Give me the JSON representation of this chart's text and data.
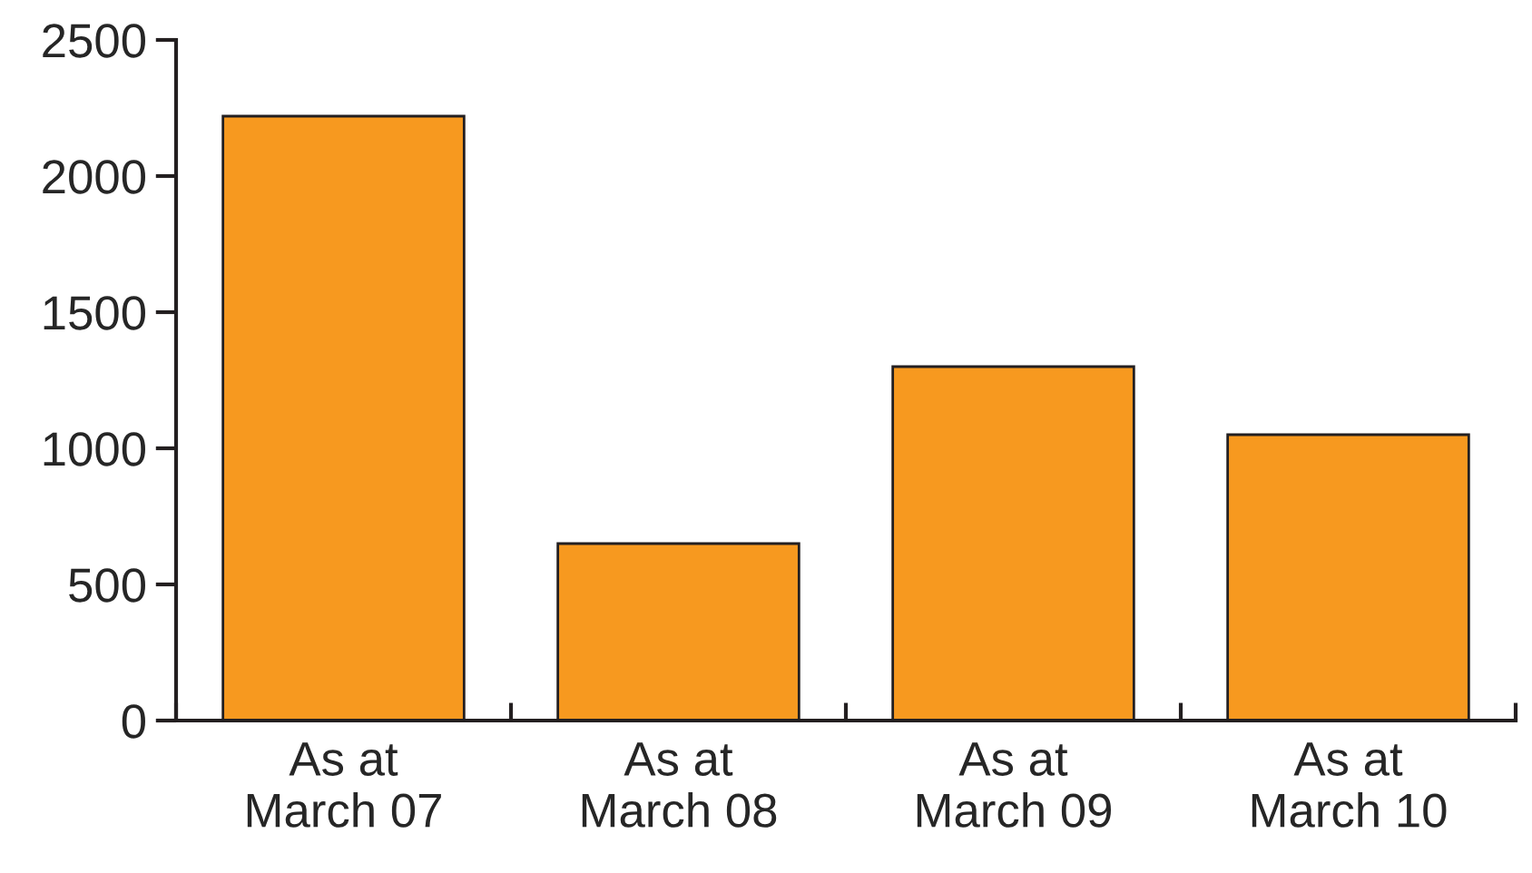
{
  "chart_data": {
    "type": "bar",
    "categories": [
      "As at\nMarch 07",
      "As at\nMarch 08",
      "As at\nMarch 09",
      "As at\nMarch 10"
    ],
    "values": [
      2220,
      650,
      1300,
      1050
    ],
    "color": "#f7991f",
    "ylim": [
      0,
      2500
    ],
    "yticks": [
      0,
      500,
      1000,
      1500,
      2000,
      2500
    ],
    "grid": false,
    "legend": false
  }
}
